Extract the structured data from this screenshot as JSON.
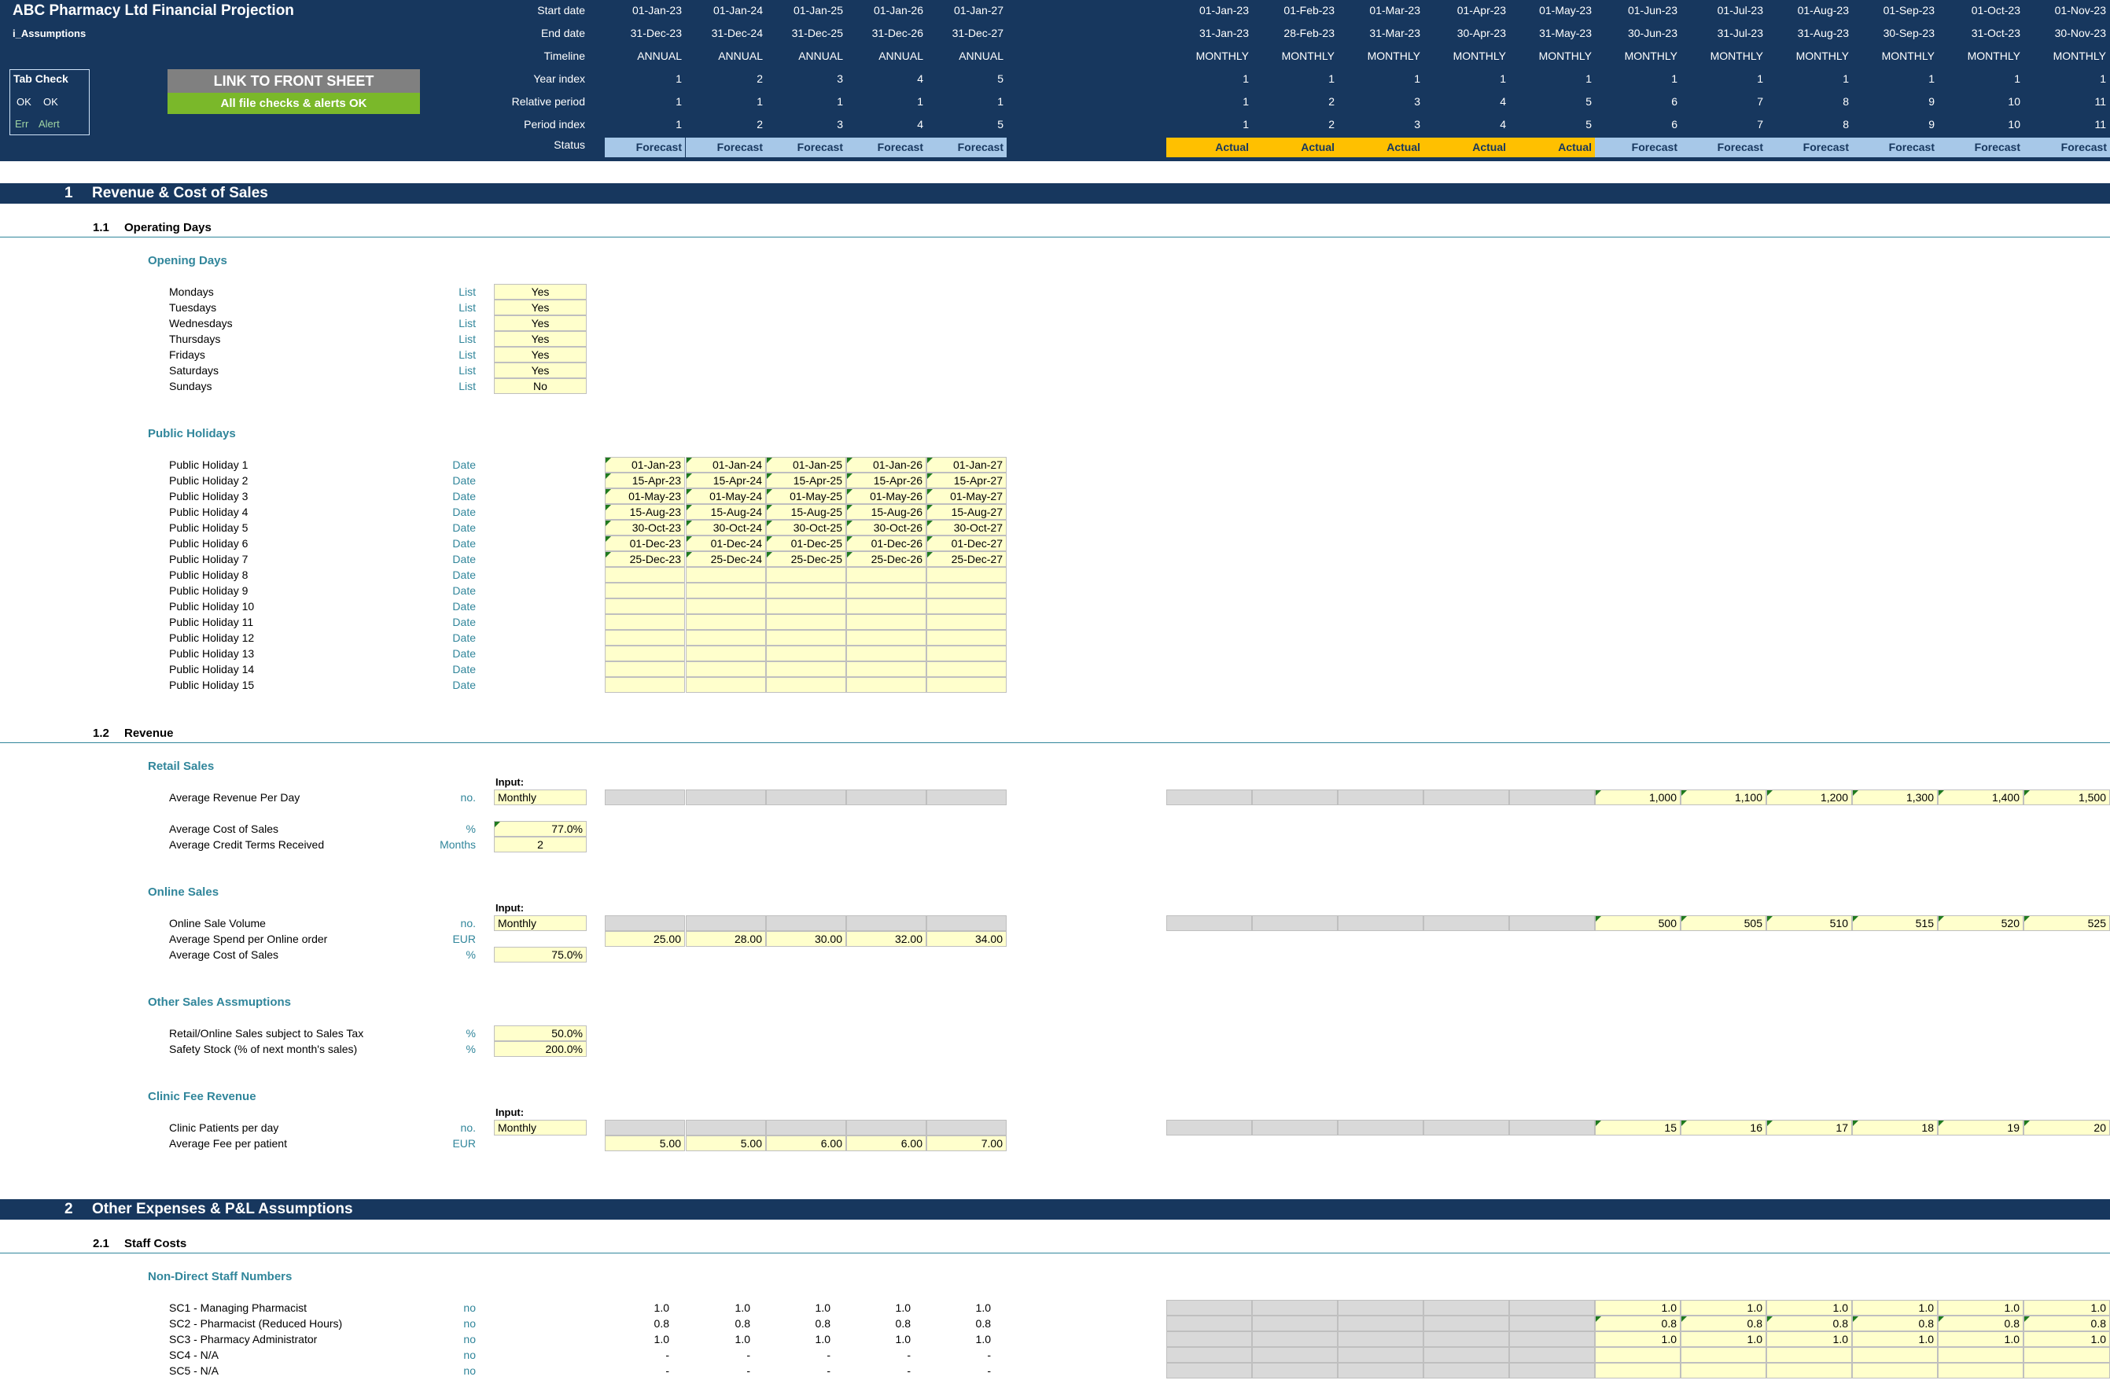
{
  "header": {
    "title": "ABC Pharmacy Ltd Financial Projection",
    "sheet": "i_Assumptions",
    "row_labels": [
      "Start date",
      "End date",
      "Timeline",
      "Year index",
      "Relative period",
      "Period index",
      "Status"
    ],
    "tab_check": {
      "title": "Tab Check",
      "ok1": "OK",
      "ok2": "OK",
      "err": "Err",
      "alert": "Alert"
    },
    "link_button": "LINK TO FRONT SHEET",
    "checks_ok": "All file checks & alerts OK",
    "annual": {
      "start": [
        "01-Jan-23",
        "01-Jan-24",
        "01-Jan-25",
        "01-Jan-26",
        "01-Jan-27"
      ],
      "end": [
        "31-Dec-23",
        "31-Dec-24",
        "31-Dec-25",
        "31-Dec-26",
        "31-Dec-27"
      ],
      "timeline": [
        "ANNUAL",
        "ANNUAL",
        "ANNUAL",
        "ANNUAL",
        "ANNUAL"
      ],
      "year_index": [
        "1",
        "2",
        "3",
        "4",
        "5"
      ],
      "relative": [
        "1",
        "1",
        "1",
        "1",
        "1"
      ],
      "period_index": [
        "1",
        "2",
        "3",
        "4",
        "5"
      ],
      "status": [
        "Forecast",
        "Forecast",
        "Forecast",
        "Forecast",
        "Forecast"
      ]
    },
    "monthly": {
      "start": [
        "01-Jan-23",
        "01-Feb-23",
        "01-Mar-23",
        "01-Apr-23",
        "01-May-23",
        "01-Jun-23",
        "01-Jul-23",
        "01-Aug-23",
        "01-Sep-23",
        "01-Oct-23",
        "01-Nov-23"
      ],
      "end": [
        "31-Jan-23",
        "28-Feb-23",
        "31-Mar-23",
        "30-Apr-23",
        "31-May-23",
        "30-Jun-23",
        "31-Jul-23",
        "31-Aug-23",
        "30-Sep-23",
        "31-Oct-23",
        "30-Nov-23"
      ],
      "timeline": [
        "MONTHLY",
        "MONTHLY",
        "MONTHLY",
        "MONTHLY",
        "MONTHLY",
        "MONTHLY",
        "MONTHLY",
        "MONTHLY",
        "MONTHLY",
        "MONTHLY",
        "MONTHLY"
      ],
      "year_index": [
        "1",
        "1",
        "1",
        "1",
        "1",
        "1",
        "1",
        "1",
        "1",
        "1",
        "1"
      ],
      "relative": [
        "1",
        "2",
        "3",
        "4",
        "5",
        "6",
        "7",
        "8",
        "9",
        "10",
        "11"
      ],
      "period_index": [
        "1",
        "2",
        "3",
        "4",
        "5",
        "6",
        "7",
        "8",
        "9",
        "10",
        "11"
      ],
      "status": [
        "Actual",
        "Actual",
        "Actual",
        "Actual",
        "Actual",
        "Forecast",
        "Forecast",
        "Forecast",
        "Forecast",
        "Forecast",
        "Forecast"
      ]
    }
  },
  "sections": {
    "s1": {
      "num": "1",
      "title": "Revenue & Cost of Sales"
    },
    "s11": {
      "num": "1.1",
      "title": "Operating Days"
    },
    "s12": {
      "num": "1.2",
      "title": "Revenue"
    },
    "s2": {
      "num": "2",
      "title": "Other Expenses & P&L Assumptions"
    },
    "s21": {
      "num": "2.1",
      "title": "Staff Costs"
    }
  },
  "opening_days": {
    "title": "Opening Days",
    "rows": [
      {
        "label": "Mondays",
        "unit": "List",
        "value": "Yes"
      },
      {
        "label": "Tuesdays",
        "unit": "List",
        "value": "Yes"
      },
      {
        "label": "Wednesdays",
        "unit": "List",
        "value": "Yes"
      },
      {
        "label": "Thursdays",
        "unit": "List",
        "value": "Yes"
      },
      {
        "label": "Fridays",
        "unit": "List",
        "value": "Yes"
      },
      {
        "label": "Saturdays",
        "unit": "List",
        "value": "Yes"
      },
      {
        "label": "Sundays",
        "unit": "List",
        "value": "No"
      }
    ]
  },
  "public_holidays": {
    "title": "Public Holidays",
    "unit": "Date",
    "rows": [
      {
        "label": "Public Holiday 1",
        "values": [
          "01-Jan-23",
          "01-Jan-24",
          "01-Jan-25",
          "01-Jan-26",
          "01-Jan-27"
        ]
      },
      {
        "label": "Public Holiday 2",
        "values": [
          "15-Apr-23",
          "15-Apr-24",
          "15-Apr-25",
          "15-Apr-26",
          "15-Apr-27"
        ]
      },
      {
        "label": "Public Holiday 3",
        "values": [
          "01-May-23",
          "01-May-24",
          "01-May-25",
          "01-May-26",
          "01-May-27"
        ]
      },
      {
        "label": "Public Holiday 4",
        "values": [
          "15-Aug-23",
          "15-Aug-24",
          "15-Aug-25",
          "15-Aug-26",
          "15-Aug-27"
        ]
      },
      {
        "label": "Public Holiday 5",
        "values": [
          "30-Oct-23",
          "30-Oct-24",
          "30-Oct-25",
          "30-Oct-26",
          "30-Oct-27"
        ]
      },
      {
        "label": "Public Holiday 6",
        "values": [
          "01-Dec-23",
          "01-Dec-24",
          "01-Dec-25",
          "01-Dec-26",
          "01-Dec-27"
        ]
      },
      {
        "label": "Public Holiday 7",
        "values": [
          "25-Dec-23",
          "25-Dec-24",
          "25-Dec-25",
          "25-Dec-26",
          "25-Dec-27"
        ]
      },
      {
        "label": "Public Holiday 8",
        "values": [
          "",
          "",
          "",
          "",
          ""
        ]
      },
      {
        "label": "Public Holiday 9",
        "values": [
          "",
          "",
          "",
          "",
          ""
        ]
      },
      {
        "label": "Public Holiday 10",
        "values": [
          "",
          "",
          "",
          "",
          ""
        ]
      },
      {
        "label": "Public Holiday 11",
        "values": [
          "",
          "",
          "",
          "",
          ""
        ]
      },
      {
        "label": "Public Holiday 12",
        "values": [
          "",
          "",
          "",
          "",
          ""
        ]
      },
      {
        "label": "Public Holiday 13",
        "values": [
          "",
          "",
          "",
          "",
          ""
        ]
      },
      {
        "label": "Public Holiday 14",
        "values": [
          "",
          "",
          "",
          "",
          ""
        ]
      },
      {
        "label": "Public Holiday 15",
        "values": [
          "",
          "",
          "",
          "",
          ""
        ]
      }
    ]
  },
  "retail": {
    "title": "Retail Sales",
    "input_label": "Input:",
    "rev_label": "Average Revenue Per Day",
    "rev_unit": "no.",
    "rev_input": "Monthly",
    "rev_monthly": [
      "1,000",
      "1,100",
      "1,200",
      "1,300",
      "1,400",
      "1,500"
    ],
    "cos_label": "Average Cost of Sales",
    "cos_unit": "%",
    "cos_value": "77.0%",
    "credit_label": "Average Credit Terms Received",
    "credit_unit": "Months",
    "credit_value": "2"
  },
  "online": {
    "title": "Online Sales",
    "input_label": "Input:",
    "vol_label": "Online Sale Volume",
    "vol_unit": "no.",
    "vol_input": "Monthly",
    "vol_monthly": [
      "500",
      "505",
      "510",
      "515",
      "520",
      "525"
    ],
    "spend_label": "Average Spend per Online order",
    "spend_unit": "EUR",
    "spend_annual": [
      "25.00",
      "28.00",
      "30.00",
      "32.00",
      "34.00"
    ],
    "cos_label": "Average Cost of Sales",
    "cos_unit": "%",
    "cos_value": "75.0%"
  },
  "other_sales": {
    "title": "Other Sales Assmuptions",
    "tax_label": "Retail/Online Sales subject to Sales Tax",
    "tax_unit": "%",
    "tax_value": "50.0%",
    "stock_label": "Safety Stock (% of next month's sales)",
    "stock_unit": "%",
    "stock_value": "200.0%"
  },
  "clinic": {
    "title": "Clinic Fee Revenue",
    "input_label": "Input:",
    "pat_label": "Clinic Patients per day",
    "pat_unit": "no.",
    "pat_input": "Monthly",
    "pat_monthly": [
      "15",
      "16",
      "17",
      "18",
      "19",
      "20"
    ],
    "fee_label": "Average Fee per patient",
    "fee_unit": "EUR",
    "fee_annual": [
      "5.00",
      "5.00",
      "6.00",
      "6.00",
      "7.00"
    ]
  },
  "staff": {
    "title": "Non-Direct Staff Numbers",
    "unit": "no",
    "rows": [
      {
        "label": "SC1 - Managing Pharmacist",
        "annual": [
          "1.0",
          "1.0",
          "1.0",
          "1.0",
          "1.0"
        ],
        "monthly": [
          "1.0",
          "1.0",
          "1.0",
          "1.0",
          "1.0",
          "1.0"
        ]
      },
      {
        "label": "SC2 - Pharmacist (Reduced Hours)",
        "annual": [
          "0.8",
          "0.8",
          "0.8",
          "0.8",
          "0.8"
        ],
        "monthly": [
          "0.8",
          "0.8",
          "0.8",
          "0.8",
          "0.8",
          "0.8"
        ]
      },
      {
        "label": "SC3 - Pharmacy Administrator",
        "annual": [
          "1.0",
          "1.0",
          "1.0",
          "1.0",
          "1.0"
        ],
        "monthly": [
          "1.0",
          "1.0",
          "1.0",
          "1.0",
          "1.0",
          "1.0"
        ]
      },
      {
        "label": "SC4 - N/A",
        "annual": [
          "-",
          "-",
          "-",
          "-",
          "-"
        ],
        "monthly": [
          "",
          "",
          "",
          "",
          "",
          ""
        ]
      },
      {
        "label": "SC5 - N/A",
        "annual": [
          "-",
          "-",
          "-",
          "-",
          "-"
        ],
        "monthly": [
          "",
          "",
          "",
          "",
          "",
          ""
        ]
      }
    ]
  },
  "colors": {
    "navy": "#17375e",
    "teal": "#31869b",
    "forecast": "#a7c8e8",
    "actual": "#ffc000",
    "input": "#ffffcc",
    "green": "#7ab82a"
  }
}
